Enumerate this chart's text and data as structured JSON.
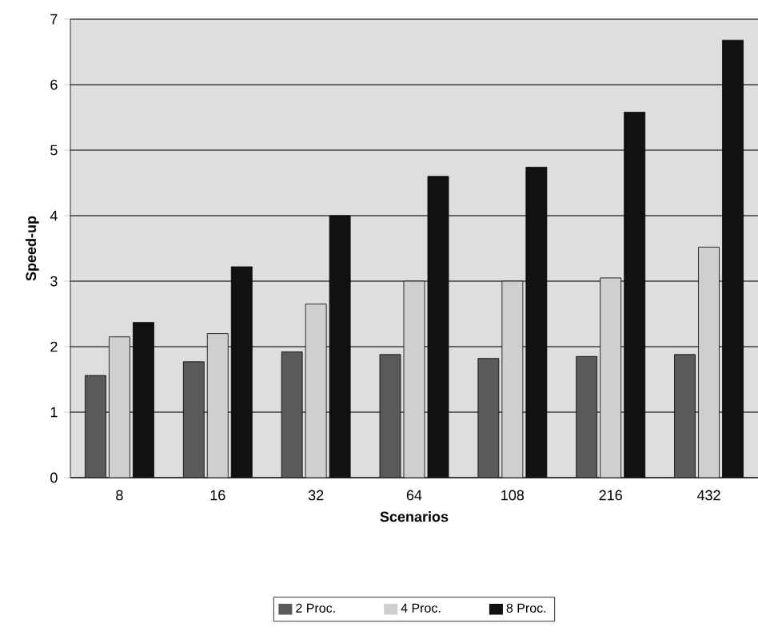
{
  "chart_data": {
    "type": "bar",
    "xlabel": "Scenarios",
    "ylabel": "Speed-up",
    "categories": [
      "8",
      "16",
      "32",
      "64",
      "108",
      "216",
      "432"
    ],
    "series": [
      {
        "name": "2 Proc.",
        "color": "#5a5a5a",
        "values": [
          1.56,
          1.77,
          1.92,
          1.88,
          1.82,
          1.85,
          1.88
        ]
      },
      {
        "name": "4 Proc.",
        "color": "#cfcfcf",
        "values": [
          2.15,
          2.2,
          2.65,
          3.0,
          3.0,
          3.05,
          3.52
        ]
      },
      {
        "name": "8 Proc.",
        "color": "#111111",
        "values": [
          2.37,
          3.22,
          4.0,
          4.6,
          4.74,
          5.58,
          6.68
        ]
      }
    ],
    "ylim": [
      0,
      7
    ],
    "yticks": [
      0,
      1,
      2,
      3,
      4,
      5,
      6,
      7
    ],
    "grid": "y",
    "legend": "bottom"
  }
}
